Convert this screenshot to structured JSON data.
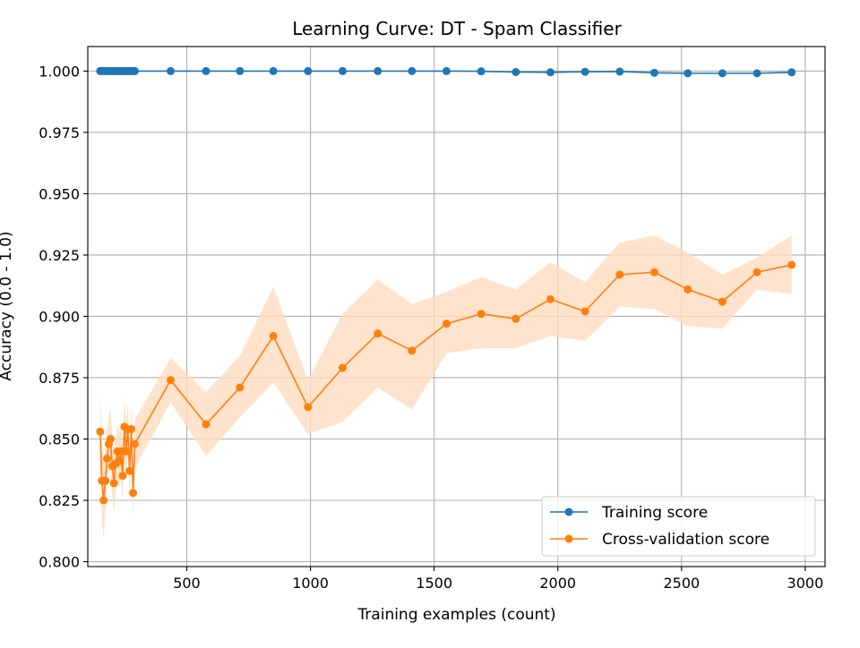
{
  "chart_data": {
    "type": "line",
    "title": "Learning Curve: DT - Spam Classifier",
    "xlabel": "Training examples (count)",
    "ylabel": "Accuracy (0.0 - 1.0)",
    "xlim": [
      100,
      3080
    ],
    "ylim": [
      0.798,
      1.01
    ],
    "xticks": [
      500,
      1000,
      1500,
      2000,
      2500,
      3000
    ],
    "xtick_labels": [
      "500",
      "1000",
      "1500",
      "2000",
      "2500",
      "3000"
    ],
    "yticks": [
      0.8,
      0.825,
      0.85,
      0.875,
      0.9,
      0.925,
      0.95,
      0.975,
      1.0
    ],
    "ytick_labels": [
      "0.800",
      "0.825",
      "0.850",
      "0.875",
      "0.900",
      "0.925",
      "0.950",
      "0.975",
      "1.000"
    ],
    "grid": true,
    "legend_position": "lower-right",
    "x": [
      150,
      157,
      164,
      171,
      178,
      185,
      192,
      199,
      206,
      213,
      220,
      227,
      234,
      241,
      248,
      255,
      262,
      269,
      276,
      283,
      290,
      435,
      578,
      715,
      850,
      990,
      1130,
      1272,
      1410,
      1550,
      1690,
      1830,
      1970,
      2110,
      2250,
      2390,
      2525,
      2665,
      2805,
      2945
    ],
    "series": [
      {
        "name": "Training score",
        "color": "#1f77b4",
        "values": [
          1.0,
          1.0,
          1.0,
          1.0,
          1.0,
          1.0,
          1.0,
          1.0,
          1.0,
          1.0,
          1.0,
          1.0,
          1.0,
          1.0,
          1.0,
          1.0,
          1.0,
          1.0,
          1.0,
          1.0,
          1.0,
          1.0,
          1.0,
          1.0,
          1.0,
          1.0,
          1.0,
          1.0,
          1.0,
          1.0,
          0.9999,
          0.9996,
          0.9995,
          0.9997,
          0.9998,
          0.9993,
          0.9991,
          0.9991,
          0.9991,
          0.9995
        ],
        "band_lower": [
          1.0,
          1.0,
          1.0,
          1.0,
          1.0,
          1.0,
          1.0,
          1.0,
          1.0,
          1.0,
          1.0,
          1.0,
          1.0,
          1.0,
          1.0,
          1.0,
          1.0,
          1.0,
          1.0,
          1.0,
          1.0,
          1.0,
          1.0,
          1.0,
          1.0,
          1.0,
          1.0,
          1.0,
          1.0,
          1.0,
          0.9997,
          0.9993,
          0.9992,
          0.9994,
          0.9996,
          0.999,
          0.9988,
          0.9988,
          0.9988,
          0.9992
        ],
        "band_upper": [
          1.0,
          1.0,
          1.0,
          1.0,
          1.0,
          1.0,
          1.0,
          1.0,
          1.0,
          1.0,
          1.0,
          1.0,
          1.0,
          1.0,
          1.0,
          1.0,
          1.0,
          1.0,
          1.0,
          1.0,
          1.0,
          1.0,
          1.0,
          1.0,
          1.0,
          1.0,
          1.0,
          1.0,
          1.0,
          1.0,
          1.0,
          0.9999,
          0.9998,
          1.0,
          1.0,
          0.9996,
          0.9994,
          0.9994,
          0.9994,
          0.9998
        ]
      },
      {
        "name": "Cross-validation score",
        "color": "#ff7f0e",
        "band_color": "#ffdcbf",
        "values": [
          0.853,
          0.833,
          0.825,
          0.833,
          0.842,
          0.848,
          0.85,
          0.839,
          0.832,
          0.84,
          0.845,
          0.841,
          0.845,
          0.835,
          0.855,
          0.845,
          0.854,
          0.837,
          0.854,
          0.828,
          0.848,
          0.874,
          0.856,
          0.871,
          0.892,
          0.863,
          0.879,
          0.893,
          0.886,
          0.897,
          0.901,
          0.899,
          0.907,
          0.902,
          0.917,
          0.918,
          0.911,
          0.906,
          0.918,
          0.921
        ],
        "band_lower": [
          0.836,
          0.818,
          0.809,
          0.82,
          0.83,
          0.836,
          0.838,
          0.827,
          0.82,
          0.829,
          0.834,
          0.83,
          0.834,
          0.824,
          0.843,
          0.834,
          0.843,
          0.827,
          0.843,
          0.818,
          0.838,
          0.865,
          0.843,
          0.859,
          0.873,
          0.852,
          0.857,
          0.871,
          0.862,
          0.885,
          0.887,
          0.887,
          0.892,
          0.89,
          0.904,
          0.903,
          0.896,
          0.895,
          0.911,
          0.909
        ],
        "band_upper": [
          0.87,
          0.848,
          0.841,
          0.846,
          0.854,
          0.86,
          0.862,
          0.851,
          0.844,
          0.851,
          0.856,
          0.852,
          0.856,
          0.846,
          0.867,
          0.856,
          0.865,
          0.847,
          0.865,
          0.838,
          0.858,
          0.883,
          0.869,
          0.884,
          0.912,
          0.874,
          0.901,
          0.915,
          0.905,
          0.91,
          0.916,
          0.911,
          0.922,
          0.914,
          0.93,
          0.933,
          0.926,
          0.917,
          0.924,
          0.933
        ]
      }
    ]
  }
}
